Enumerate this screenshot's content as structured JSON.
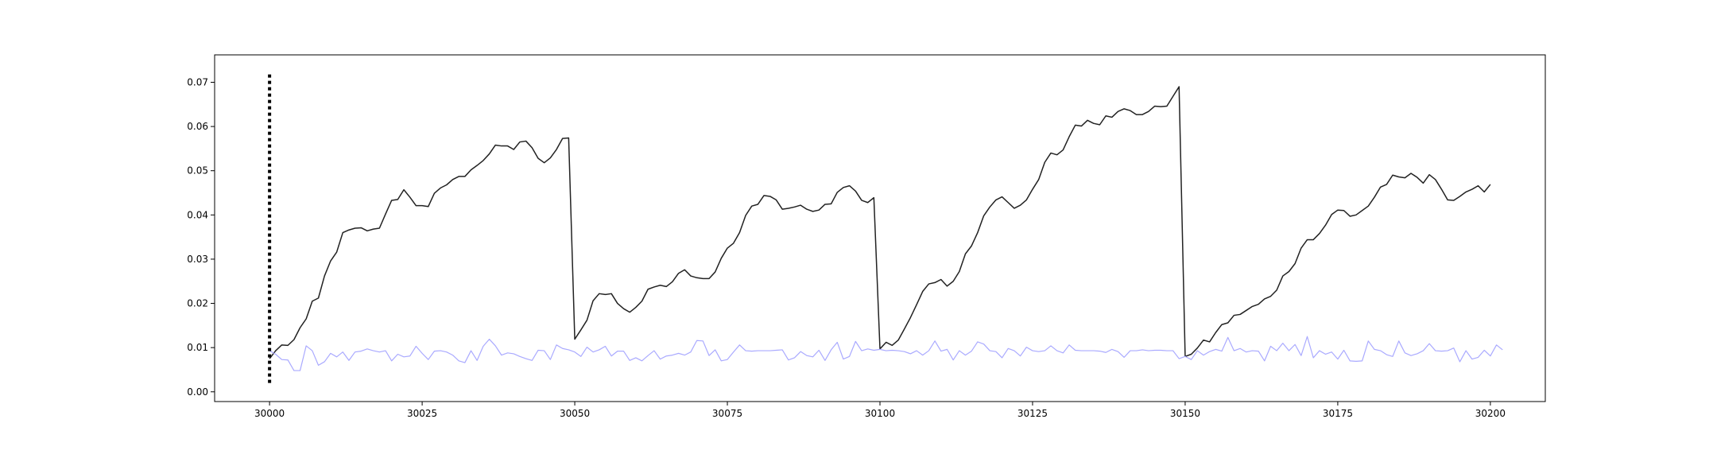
{
  "chart_data": {
    "type": "line",
    "title": "",
    "xlabel": "",
    "ylabel": "",
    "xlim": [
      29991,
      30209
    ],
    "ylim": [
      -0.0022,
      0.0762
    ],
    "xticks": [
      30000,
      30025,
      30050,
      30075,
      30100,
      30125,
      30150,
      30175,
      30200
    ],
    "xtick_labels": [
      "30000",
      "30025",
      "30050",
      "30075",
      "30100",
      "30125",
      "30150",
      "30175",
      "30200"
    ],
    "yticks": [
      0.0,
      0.01,
      0.02,
      0.03,
      0.04,
      0.05,
      0.06,
      0.07
    ],
    "ytick_labels": [
      "0.00",
      "0.01",
      "0.02",
      "0.03",
      "0.04",
      "0.05",
      "0.06",
      "0.07"
    ],
    "grid": false,
    "legend": "none",
    "vline": {
      "x": 30000,
      "y_range": [
        0.002,
        0.072
      ],
      "style": "dotted",
      "color": "#000000"
    },
    "x_start": 30000,
    "series": [
      {
        "color": "#222222",
        "values": [
          0.0075,
          0.0093,
          0.0106,
          0.0105,
          0.0118,
          0.0145,
          0.0165,
          0.0205,
          0.0212,
          0.0262,
          0.0296,
          0.0316,
          0.036,
          0.0366,
          0.037,
          0.0371,
          0.0364,
          0.0368,
          0.037,
          0.0402,
          0.0433,
          0.0435,
          0.0457,
          0.044,
          0.0421,
          0.0421,
          0.0419,
          0.0449,
          0.0461,
          0.0468,
          0.048,
          0.0487,
          0.0487,
          0.0502,
          0.0512,
          0.0523,
          0.0538,
          0.0558,
          0.0556,
          0.0556,
          0.0548,
          0.0565,
          0.0567,
          0.0552,
          0.0528,
          0.0518,
          0.0529,
          0.0548,
          0.0573,
          0.0574,
          0.0119,
          0.014,
          0.0162,
          0.0206,
          0.0222,
          0.022,
          0.0222,
          0.02,
          0.0188,
          0.018,
          0.0191,
          0.0205,
          0.0232,
          0.0237,
          0.0241,
          0.0238,
          0.0249,
          0.0268,
          0.0276,
          0.0262,
          0.0258,
          0.0256,
          0.0256,
          0.0271,
          0.0302,
          0.0325,
          0.0336,
          0.036,
          0.0399,
          0.042,
          0.0424,
          0.0444,
          0.0442,
          0.0434,
          0.0413,
          0.0415,
          0.0418,
          0.0422,
          0.0413,
          0.0408,
          0.0411,
          0.0424,
          0.0425,
          0.0451,
          0.0462,
          0.0466,
          0.0454,
          0.0433,
          0.0428,
          0.0439,
          0.0097,
          0.0112,
          0.0105,
          0.0117,
          0.0142,
          0.0168,
          0.0197,
          0.0227,
          0.0244,
          0.0247,
          0.0254,
          0.0239,
          0.025,
          0.0272,
          0.0312,
          0.033,
          0.036,
          0.0398,
          0.0418,
          0.0434,
          0.0441,
          0.0428,
          0.0415,
          0.0422,
          0.0434,
          0.0458,
          0.048,
          0.0519,
          0.054,
          0.0536,
          0.0547,
          0.0577,
          0.0603,
          0.0601,
          0.0614,
          0.0607,
          0.0604,
          0.0624,
          0.0621,
          0.0634,
          0.064,
          0.0636,
          0.0627,
          0.0627,
          0.0634,
          0.0646,
          0.0645,
          0.0646,
          0.0668,
          0.069,
          0.008,
          0.0085,
          0.0099,
          0.0117,
          0.0113,
          0.0134,
          0.0152,
          0.0156,
          0.0173,
          0.0175,
          0.0184,
          0.0193,
          0.0198,
          0.021,
          0.0216,
          0.023,
          0.0262,
          0.0272,
          0.029,
          0.0325,
          0.0344,
          0.0344,
          0.0358,
          0.0377,
          0.0401,
          0.0411,
          0.041,
          0.0397,
          0.04,
          0.041,
          0.042,
          0.044,
          0.0463,
          0.0469,
          0.049,
          0.0486,
          0.0484,
          0.0494,
          0.0485,
          0.0472,
          0.0491,
          0.048,
          0.0458,
          0.0434,
          0.0433,
          0.0442,
          0.0452,
          0.0458,
          0.0466,
          0.0452,
          0.0469
        ]
      },
      {
        "color": "#aaaaff",
        "values": [
          0.0093,
          0.0085,
          0.0073,
          0.0072,
          0.0048,
          0.0048,
          0.0104,
          0.0093,
          0.006,
          0.0068,
          0.0087,
          0.0079,
          0.009,
          0.0071,
          0.009,
          0.0092,
          0.0097,
          0.0093,
          0.009,
          0.0093,
          0.007,
          0.0085,
          0.0079,
          0.0081,
          0.0103,
          0.0087,
          0.0073,
          0.0092,
          0.0093,
          0.009,
          0.0083,
          0.007,
          0.0066,
          0.0093,
          0.0071,
          0.0103,
          0.0119,
          0.0104,
          0.0083,
          0.0088,
          0.0086,
          0.008,
          0.0075,
          0.0071,
          0.0094,
          0.0093,
          0.0073,
          0.0106,
          0.0098,
          0.0095,
          0.009,
          0.008,
          0.0101,
          0.009,
          0.0095,
          0.0103,
          0.0081,
          0.0092,
          0.0092,
          0.0071,
          0.0077,
          0.007,
          0.0082,
          0.0093,
          0.0074,
          0.0081,
          0.0083,
          0.0087,
          0.0083,
          0.009,
          0.0116,
          0.0115,
          0.0082,
          0.0095,
          0.007,
          0.0073,
          0.009,
          0.0106,
          0.0093,
          0.0092,
          0.0093,
          0.0093,
          0.0093,
          0.0094,
          0.0095,
          0.0072,
          0.0077,
          0.0091,
          0.0082,
          0.0079,
          0.0094,
          0.0071,
          0.0095,
          0.0112,
          0.0074,
          0.008,
          0.0114,
          0.0093,
          0.0097,
          0.0094,
          0.0096,
          0.0093,
          0.0094,
          0.0093,
          0.0091,
          0.0086,
          0.0093,
          0.0083,
          0.0093,
          0.0115,
          0.0092,
          0.0096,
          0.0072,
          0.0093,
          0.0083,
          0.0092,
          0.0113,
          0.0108,
          0.0093,
          0.0091,
          0.0077,
          0.0098,
          0.0093,
          0.0081,
          0.0101,
          0.0093,
          0.0091,
          0.0093,
          0.0104,
          0.0093,
          0.0088,
          0.0106,
          0.0094,
          0.0093,
          0.0093,
          0.0093,
          0.0092,
          0.0089,
          0.0096,
          0.0091,
          0.0078,
          0.0093,
          0.0093,
          0.0095,
          0.0093,
          0.0094,
          0.0094,
          0.0093,
          0.0093,
          0.0075,
          0.008,
          0.0073,
          0.0093,
          0.0083,
          0.0091,
          0.0096,
          0.0092,
          0.0123,
          0.0093,
          0.0098,
          0.009,
          0.0093,
          0.0092,
          0.007,
          0.0103,
          0.0093,
          0.011,
          0.0093,
          0.0107,
          0.0082,
          0.0125,
          0.0077,
          0.0093,
          0.0085,
          0.009,
          0.0074,
          0.0094,
          0.007,
          0.0069,
          0.007,
          0.0115,
          0.0096,
          0.0093,
          0.0084,
          0.008,
          0.0115,
          0.0088,
          0.0082,
          0.0086,
          0.0093,
          0.0109,
          0.0093,
          0.0092,
          0.0093,
          0.0099,
          0.0068,
          0.0093,
          0.0074,
          0.0078,
          0.0094,
          0.0081,
          0.0106,
          0.0095
        ]
      }
    ]
  }
}
